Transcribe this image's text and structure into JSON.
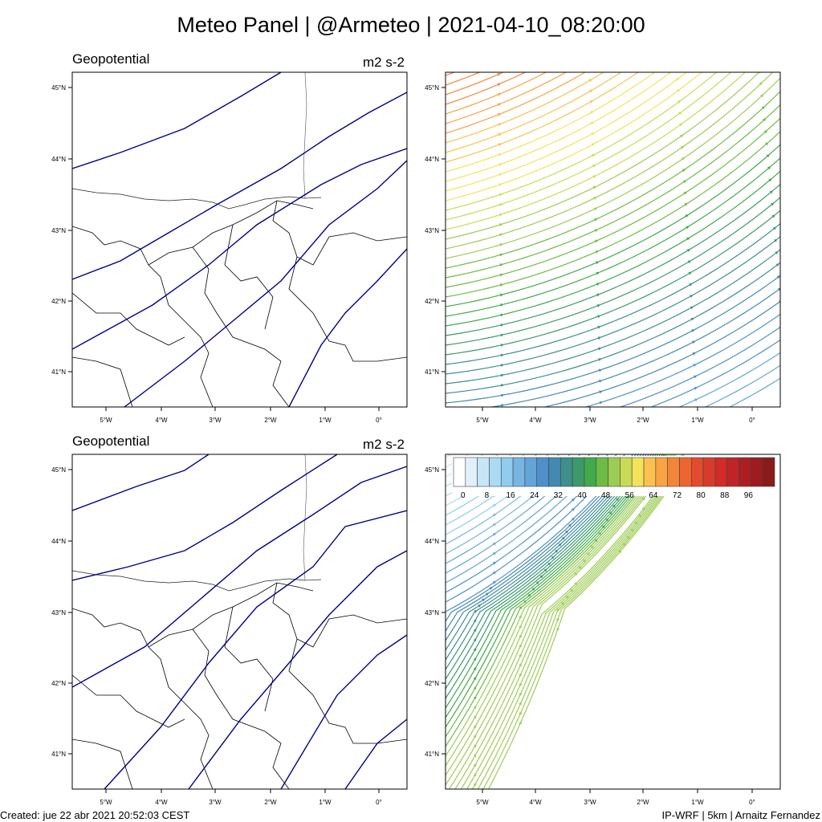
{
  "title": "Meteo Panel | @Armeteo | 2021-04-10_08:20:00",
  "panels": [
    {
      "title": "Geopotential",
      "units": "m2 s-2"
    },
    {
      "title": "Geopotential",
      "units": "m2 s-2"
    }
  ],
  "lat_ticks": [
    "45°N",
    "44°N",
    "43°N",
    "42°N",
    "41°N"
  ],
  "lon_ticks": [
    "5°W",
    "4°W",
    "3°W",
    "2°W",
    "1°W",
    "0°"
  ],
  "colorbar": {
    "labels": [
      "0",
      "8",
      "16",
      "24",
      "32",
      "40",
      "48",
      "56",
      "64",
      "72",
      "80",
      "88",
      "96"
    ],
    "colors": [
      "#ffffff",
      "#e1f1fb",
      "#c6e6f8",
      "#abdaf3",
      "#8ecdf0",
      "#77b5e2",
      "#62a5d9",
      "#4f90cb",
      "#4489b0",
      "#3f8f8c",
      "#3c9a6a",
      "#41aa4b",
      "#6dbb45",
      "#9dcc55",
      "#c9db55",
      "#f3e35a",
      "#fbc150",
      "#f9a343",
      "#f28538",
      "#ee6530",
      "#e24b2d",
      "#d93b2b",
      "#d22b28",
      "#c12426",
      "#ae1d22",
      "#9e1b1f",
      "#8b1a1a"
    ]
  },
  "footer": {
    "created": "Created: jue 22 abr 2021 20:52:03 CEST",
    "credit": "IP-WRF | 5km | Arnaitz Fernandez"
  }
}
